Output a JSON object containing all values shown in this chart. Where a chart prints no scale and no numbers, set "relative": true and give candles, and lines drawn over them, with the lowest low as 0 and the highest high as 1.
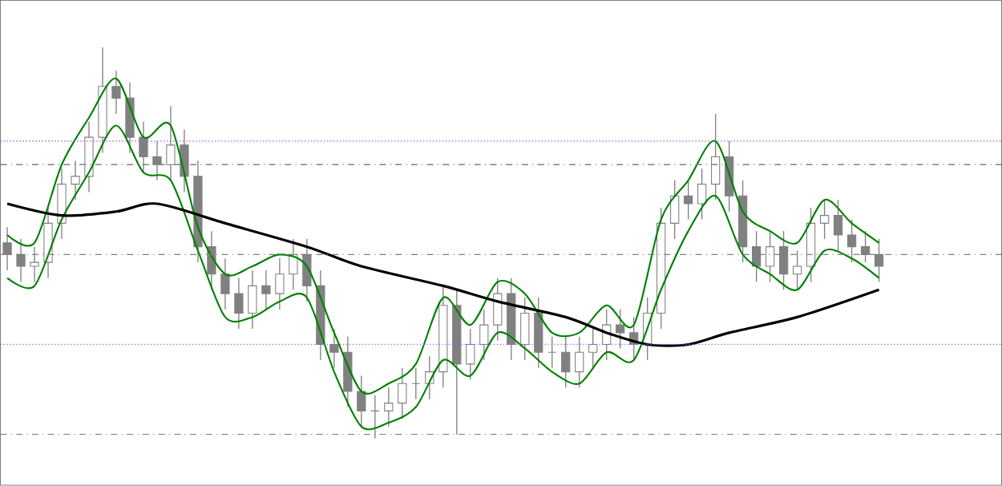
{
  "chart_data": {
    "type": "candlestick",
    "relative": true,
    "categories": [
      null,
      null,
      null,
      null,
      null,
      null,
      null,
      null,
      null,
      null,
      null,
      null,
      null,
      null,
      null,
      null,
      null,
      null,
      null,
      null,
      null,
      null,
      null,
      null,
      null,
      null,
      null,
      null,
      null,
      null,
      null,
      null,
      null,
      null,
      null,
      null,
      null,
      null,
      null,
      null,
      null,
      null,
      null,
      null,
      null,
      null,
      null,
      null,
      null,
      null,
      null,
      null,
      null,
      null,
      null,
      null,
      null,
      null,
      null,
      null,
      null,
      null,
      null,
      null,
      null
    ],
    "color": "#808080",
    "ohlc": [
      [
        0.5,
        0.54,
        0.43,
        0.47
      ],
      [
        0.47,
        0.51,
        0.4,
        0.44
      ],
      [
        0.44,
        0.49,
        0.4,
        0.45
      ],
      [
        0.45,
        0.59,
        0.41,
        0.55
      ],
      [
        0.55,
        0.69,
        0.51,
        0.65
      ],
      [
        0.65,
        0.71,
        0.61,
        0.67
      ],
      [
        0.67,
        0.81,
        0.63,
        0.77
      ],
      [
        0.77,
        1.0,
        0.73,
        0.9
      ],
      [
        0.9,
        0.94,
        0.83,
        0.87
      ],
      [
        0.87,
        0.91,
        0.73,
        0.77
      ],
      [
        0.77,
        0.81,
        0.68,
        0.72
      ],
      [
        0.72,
        0.76,
        0.66,
        0.7
      ],
      [
        0.7,
        0.85,
        0.66,
        0.75
      ],
      [
        0.75,
        0.79,
        0.63,
        0.67
      ],
      [
        0.67,
        0.71,
        0.45,
        0.49
      ],
      [
        0.49,
        0.53,
        0.38,
        0.42
      ],
      [
        0.42,
        0.46,
        0.33,
        0.37
      ],
      [
        0.37,
        0.41,
        0.28,
        0.32
      ],
      [
        0.32,
        0.43,
        0.28,
        0.39
      ],
      [
        0.39,
        0.43,
        0.33,
        0.37
      ],
      [
        0.37,
        0.46,
        0.33,
        0.42
      ],
      [
        0.42,
        0.51,
        0.38,
        0.47
      ],
      [
        0.47,
        0.51,
        0.35,
        0.39
      ],
      [
        0.39,
        0.43,
        0.2,
        0.24
      ],
      [
        0.24,
        0.28,
        0.18,
        0.22
      ],
      [
        0.22,
        0.26,
        0.08,
        0.12
      ],
      [
        0.12,
        0.16,
        0.03,
        0.07
      ],
      [
        0.07,
        0.11,
        0.0,
        0.07
      ],
      [
        0.07,
        0.13,
        0.03,
        0.09
      ],
      [
        0.09,
        0.18,
        0.05,
        0.14
      ],
      [
        0.14,
        0.18,
        0.1,
        0.14
      ],
      [
        0.14,
        0.21,
        0.1,
        0.17
      ],
      [
        0.17,
        0.39,
        0.13,
        0.34
      ],
      [
        0.34,
        0.38,
        0.01,
        0.19
      ],
      [
        0.19,
        0.28,
        0.15,
        0.24
      ],
      [
        0.24,
        0.33,
        0.2,
        0.29
      ],
      [
        0.29,
        0.41,
        0.25,
        0.37
      ],
      [
        0.37,
        0.41,
        0.2,
        0.24
      ],
      [
        0.24,
        0.36,
        0.2,
        0.32
      ],
      [
        0.32,
        0.36,
        0.18,
        0.22
      ],
      [
        0.22,
        0.26,
        0.18,
        0.22
      ],
      [
        0.22,
        0.26,
        0.13,
        0.17
      ],
      [
        0.17,
        0.26,
        0.13,
        0.22
      ],
      [
        0.22,
        0.28,
        0.18,
        0.24
      ],
      [
        0.24,
        0.33,
        0.2,
        0.29
      ],
      [
        0.29,
        0.33,
        0.23,
        0.27
      ],
      [
        0.27,
        0.31,
        0.2,
        0.24
      ],
      [
        0.24,
        0.36,
        0.2,
        0.32
      ],
      [
        0.32,
        0.59,
        0.28,
        0.55
      ],
      [
        0.55,
        0.66,
        0.51,
        0.62
      ],
      [
        0.62,
        0.66,
        0.56,
        0.6
      ],
      [
        0.6,
        0.69,
        0.56,
        0.65
      ],
      [
        0.65,
        0.83,
        0.61,
        0.72
      ],
      [
        0.72,
        0.76,
        0.58,
        0.62
      ],
      [
        0.62,
        0.66,
        0.45,
        0.49
      ],
      [
        0.49,
        0.53,
        0.4,
        0.44
      ],
      [
        0.44,
        0.53,
        0.4,
        0.49
      ],
      [
        0.49,
        0.53,
        0.38,
        0.42
      ],
      [
        0.42,
        0.48,
        0.38,
        0.44
      ],
      [
        0.44,
        0.59,
        0.4,
        0.55
      ],
      [
        0.55,
        0.61,
        0.51,
        0.57
      ],
      [
        0.57,
        0.61,
        0.48,
        0.52
      ],
      [
        0.52,
        0.56,
        0.45,
        0.49
      ],
      [
        0.49,
        0.53,
        0.45,
        0.47
      ],
      [
        0.47,
        0.51,
        0.4,
        0.44
      ]
    ],
    "series": [
      {
        "type": "line",
        "color": "#008000",
        "values": [
          0.52,
          null,
          0.5,
          null,
          0.7,
          null,
          0.82,
          null,
          0.92,
          null,
          0.77,
          null,
          0.8,
          null,
          0.54,
          null,
          0.42,
          null,
          0.44,
          null,
          0.47,
          null,
          0.44,
          null,
          0.27,
          null,
          0.12,
          null,
          0.14,
          null,
          0.19,
          null,
          0.36,
          null,
          0.29,
          null,
          0.4,
          null,
          0.37,
          null,
          0.27,
          null,
          0.27,
          null,
          0.34,
          null,
          0.29,
          null,
          0.56,
          null,
          0.66,
          null,
          0.76,
          null,
          0.58,
          null,
          0.53,
          null,
          0.5,
          null,
          0.61,
          null,
          0.55,
          null,
          0.5
        ]
      },
      {
        "type": "line",
        "color": "#008000",
        "values": [
          0.41,
          null,
          0.39,
          null,
          0.56,
          null,
          0.68,
          null,
          0.8,
          null,
          0.68,
          null,
          0.66,
          null,
          0.48,
          null,
          0.31,
          null,
          0.31,
          null,
          0.35,
          null,
          0.36,
          null,
          0.17,
          null,
          0.03,
          null,
          0.04,
          null,
          0.08,
          null,
          0.2,
          null,
          0.16,
          null,
          0.27,
          null,
          0.23,
          null,
          0.17,
          null,
          0.14,
          null,
          0.22,
          null,
          0.2,
          null,
          0.38,
          null,
          0.53,
          null,
          0.62,
          null,
          0.47,
          null,
          0.42,
          null,
          0.38,
          null,
          0.48,
          null,
          0.46,
          null,
          0.41
        ]
      },
      {
        "type": "line",
        "color": "#000000",
        "values": [
          0.6,
          null,
          null,
          null,
          0.57,
          null,
          null,
          null,
          0.58,
          null,
          null,
          0.6,
          null,
          null,
          null,
          null,
          0.55,
          null,
          null,
          null,
          null,
          null,
          0.49,
          null,
          null,
          null,
          0.44,
          null,
          null,
          null,
          null,
          null,
          0.39,
          null,
          null,
          null,
          0.35,
          null,
          null,
          null,
          null,
          0.31,
          null,
          null,
          0.27,
          null,
          null,
          0.24,
          null,
          null,
          0.24,
          null,
          null,
          0.27,
          null,
          null,
          null,
          null,
          0.31,
          null,
          null,
          null,
          null,
          null,
          0.38
        ]
      }
    ],
    "ref_lines": [
      {
        "axis": "y",
        "value": 0.7,
        "color": "#808080",
        "line_style": "dashed"
      },
      {
        "axis": "y",
        "value": 0.47,
        "color": "#808080",
        "line_style": "dashed"
      },
      {
        "axis": "y",
        "value": 0.01,
        "color": "#808080",
        "line_style": "dashed"
      },
      {
        "axis": "y",
        "value": 0.76,
        "color": "#9966ee",
        "line_style": "dotted"
      },
      {
        "axis": "y",
        "value": 0.24,
        "color": "#9966ee",
        "line_style": "dotted"
      }
    ]
  }
}
